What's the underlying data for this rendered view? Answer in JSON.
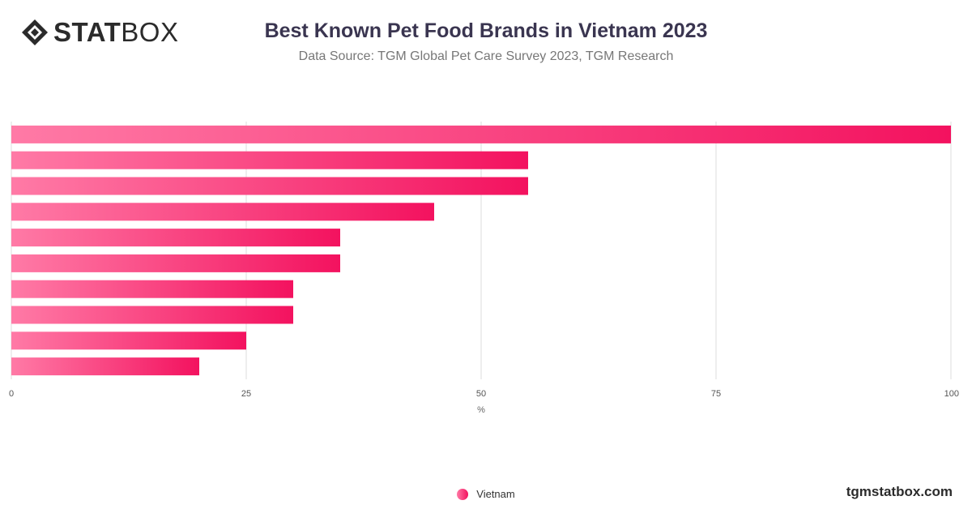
{
  "brand": {
    "logo_bold": "STAT",
    "logo_light": "BOX",
    "site": "tgmstatbox.com"
  },
  "colors": {
    "bar_start": "#ff7aa6",
    "bar_end": "#f3125f",
    "grid": "#dddddd"
  },
  "chart_data": {
    "type": "bar",
    "orientation": "horizontal",
    "title": "Best Known Pet Food Brands in Vietnam 2023",
    "subtitle": "Data Source: TGM Global Pet Care Survey 2023, TGM Research",
    "xlabel": "%",
    "ylabel": "",
    "xlim": [
      0,
      100
    ],
    "xticks": [
      0,
      25,
      50,
      75,
      100
    ],
    "grid": true,
    "legend_position": "bottom",
    "series": [
      {
        "name": "Vietnam",
        "values": [
          100,
          55,
          55,
          45,
          35,
          35,
          30,
          30,
          25,
          20
        ]
      }
    ]
  }
}
